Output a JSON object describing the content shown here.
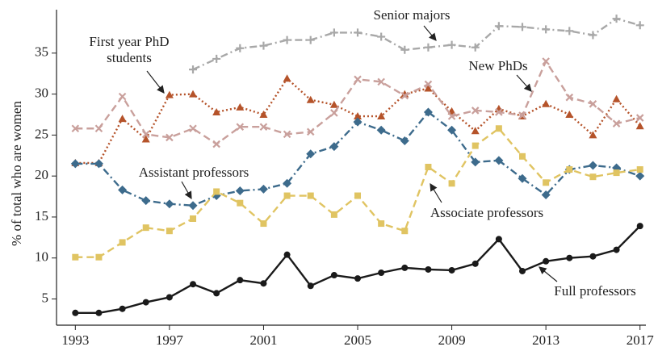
{
  "chart_data": {
    "type": "line",
    "y_label": "% of total who are women",
    "x": [
      1993,
      1994,
      1995,
      1996,
      1997,
      1998,
      1999,
      2000,
      2001,
      2002,
      2003,
      2004,
      2005,
      2006,
      2007,
      2008,
      2009,
      2010,
      2011,
      2012,
      2013,
      2014,
      2015,
      2016,
      2017
    ],
    "xlim": [
      1992.2,
      2017.25
    ],
    "xticks": [
      1993,
      1997,
      2001,
      2005,
      2009,
      2013,
      2017
    ],
    "ylim": [
      1.8,
      40.3
    ],
    "yticks": [
      5,
      10,
      15,
      20,
      25,
      30,
      35
    ],
    "series": [
      {
        "name": "Senior majors",
        "color": "#a8a8a8",
        "marker": "plus",
        "dash": "dashdot",
        "values": [
          null,
          null,
          null,
          null,
          null,
          33.0,
          34.3,
          35.6,
          35.9,
          36.6,
          36.6,
          37.5,
          37.5,
          37.0,
          35.4,
          35.7,
          36.0,
          35.7,
          38.3,
          38.2,
          37.9,
          37.7,
          37.2,
          39.2,
          38.4
        ]
      },
      {
        "name": "First year PhD students",
        "color": "#b5532a",
        "marker": "triangle",
        "dash": "dotted",
        "values": [
          21.6,
          21.6,
          27.0,
          24.5,
          29.9,
          30.0,
          27.8,
          28.4,
          27.5,
          31.9,
          29.3,
          28.7,
          27.3,
          27.3,
          30.0,
          30.7,
          27.9,
          25.5,
          28.2,
          27.3,
          28.8,
          27.5,
          25.0,
          29.4,
          26.1
        ]
      },
      {
        "name": "New PhDs",
        "color": "#c9a09c",
        "marker": "x",
        "dash": "dashed",
        "values": [
          25.8,
          25.8,
          29.7,
          25.1,
          24.7,
          25.8,
          23.9,
          26.0,
          26.0,
          25.1,
          25.4,
          27.7,
          31.8,
          31.5,
          29.8,
          31.2,
          27.3,
          28.0,
          27.8,
          27.4,
          34.0,
          29.6,
          28.8,
          26.4,
          27.1
        ]
      },
      {
        "name": "Assistant professors",
        "color": "#3d6b8c",
        "marker": "diamond",
        "dash": "dashdot",
        "values": [
          21.5,
          21.5,
          18.3,
          17.0,
          16.6,
          16.4,
          17.6,
          18.2,
          18.4,
          19.1,
          22.7,
          23.6,
          26.6,
          25.6,
          24.3,
          27.8,
          25.6,
          21.7,
          21.9,
          19.7,
          17.7,
          20.8,
          21.3,
          21.0,
          20.0
        ]
      },
      {
        "name": "Associate professors",
        "color": "#e0c462",
        "marker": "square",
        "dash": "dashed",
        "values": [
          10.1,
          10.1,
          11.9,
          13.7,
          13.3,
          14.8,
          18.1,
          16.7,
          14.2,
          17.6,
          17.6,
          15.3,
          17.6,
          14.2,
          13.3,
          21.1,
          19.1,
          23.7,
          25.8,
          22.4,
          19.2,
          20.8,
          19.9,
          20.4,
          20.8
        ]
      },
      {
        "name": "Full professors",
        "color": "#1a1a1a",
        "marker": "circle",
        "dash": "solid",
        "values": [
          3.3,
          3.3,
          3.8,
          4.6,
          5.2,
          6.8,
          5.7,
          7.3,
          6.9,
          10.4,
          6.6,
          7.9,
          7.5,
          8.2,
          8.8,
          8.6,
          8.5,
          9.3,
          12.3,
          8.4,
          9.6,
          10.0,
          10.2,
          11.0,
          13.9
        ]
      }
    ]
  }
}
